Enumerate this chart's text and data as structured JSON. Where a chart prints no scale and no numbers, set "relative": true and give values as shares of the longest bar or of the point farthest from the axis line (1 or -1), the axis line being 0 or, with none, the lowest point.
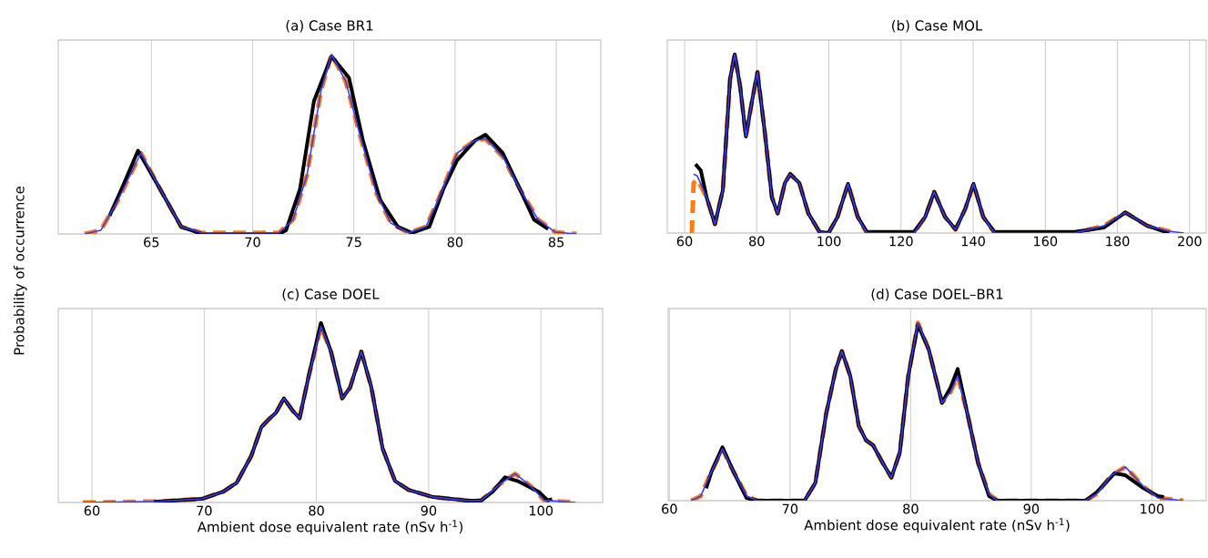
{
  "chart_data": [
    {
      "type": "line",
      "relative": true,
      "title": "(a) Case BR1",
      "ylabel": "Probability of occurrence",
      "xlim": [
        60.4,
        87.2
      ],
      "xticks": [
        65,
        70,
        75,
        80,
        85
      ],
      "grid": "x",
      "series": [
        {
          "color": "#3b3bff",
          "line_style": "solid",
          "x": [
            61.7,
            62.5,
            63.36,
            64.48,
            65.43,
            66.47,
            67.5,
            71.3,
            72.0,
            72.69,
            73.38,
            73.9,
            74.6,
            75.28,
            76.1,
            76.83,
            77.7,
            78.56,
            79.25,
            80.1,
            80.98,
            81.5,
            82.36,
            83.2,
            84.1,
            84.95,
            86.0
          ],
          "values": [
            0,
            0.02,
            0.19,
            0.45,
            0.25,
            0.04,
            0.006,
            0.006,
            0.08,
            0.33,
            0.8,
            1.0,
            0.85,
            0.56,
            0.23,
            0.06,
            0.006,
            0.04,
            0.21,
            0.45,
            0.52,
            0.53,
            0.43,
            0.25,
            0.08,
            0.01,
            0
          ]
        },
        {
          "color": "#ff7f0e",
          "line_style": "dashed",
          "x": [
            61.7,
            62.5,
            63.36,
            64.48,
            65.43,
            66.47,
            67.5,
            71.3,
            72.0,
            72.69,
            73.38,
            73.9,
            74.6,
            75.28,
            76.1,
            76.83,
            77.7,
            78.56,
            79.25,
            80.1,
            80.98,
            81.5,
            82.36,
            83.2,
            84.1,
            84.95,
            86.0
          ],
          "values": [
            0,
            0.02,
            0.19,
            0.45,
            0.25,
            0.04,
            0.006,
            0.006,
            0.08,
            0.33,
            0.8,
            1.0,
            0.85,
            0.56,
            0.23,
            0.06,
            0.006,
            0.04,
            0.21,
            0.45,
            0.52,
            0.53,
            0.43,
            0.25,
            0.08,
            0.01,
            0
          ]
        },
        {
          "color": "#000000",
          "line_style": "solid",
          "x": [
            62.93,
            63.53,
            64.34,
            65.43,
            66.47,
            67.5,
            71.3,
            71.65,
            72.34,
            73.03,
            73.9,
            74.76,
            75.45,
            76.3,
            77.17,
            77.87,
            78.73,
            79.42,
            80.1,
            80.98,
            81.5,
            82.36,
            83.2,
            83.9,
            84.6
          ],
          "values": [
            0.1,
            0.25,
            0.464,
            0.25,
            0.04,
            0,
            0,
            0.02,
            0.25,
            0.74,
            0.99,
            0.87,
            0.52,
            0.19,
            0.04,
            0.006,
            0.04,
            0.25,
            0.41,
            0.52,
            0.553,
            0.45,
            0.25,
            0.08,
            0.027
          ]
        }
      ]
    },
    {
      "type": "line",
      "relative": true,
      "title": "(b) Case MOL",
      "xlim": [
        55.2,
        204.6
      ],
      "xticks": [
        60,
        80,
        100,
        120,
        140,
        160,
        180,
        200
      ],
      "grid": "x",
      "series": [
        {
          "color": "#3b3bff",
          "line_style": "solid",
          "x": [
            62.5,
            63.5,
            66.1,
            68.4,
            70.6,
            72.6,
            73.9,
            75.4,
            77.0,
            78.7,
            80.2,
            82.2,
            84.2,
            85.8,
            87.8,
            89.3,
            91.8,
            94.3,
            97.4,
            99.9,
            102.4,
            105.3,
            108.0,
            110.5,
            123.6,
            126.7,
            129.2,
            132.2,
            135.1,
            137.8,
            140.1,
            142.8,
            145.9,
            168.1,
            176.2,
            182.2,
            188.3,
            194.3,
            198.4
          ],
          "values": [
            0.33,
            0.32,
            0.2,
            0.05,
            0.24,
            0.86,
            1.0,
            0.82,
            0.54,
            0.74,
            0.9,
            0.57,
            0.2,
            0.11,
            0.28,
            0.33,
            0.28,
            0.11,
            0.006,
            0,
            0.09,
            0.275,
            0.09,
            0,
            0,
            0.09,
            0.23,
            0.09,
            0.02,
            0.135,
            0.275,
            0.09,
            0,
            0,
            0.04,
            0.115,
            0.04,
            0.01,
            0
          ]
        },
        {
          "color": "#ff7f0e",
          "line_style": "dashed",
          "x": [
            62.0,
            62.5,
            63.5,
            66.1,
            68.4,
            70.6,
            72.6,
            73.9,
            75.4,
            77.0,
            78.7,
            80.2,
            82.2,
            84.2,
            85.8,
            87.8,
            89.3,
            91.8,
            94.3,
            97.4,
            99.9,
            102.4,
            105.3,
            108.0,
            110.5,
            123.6,
            126.7,
            129.2,
            132.2,
            135.1,
            137.8,
            140.1,
            142.8,
            145.9,
            168.1,
            176.2,
            182.2,
            188.3,
            194.3,
            196.4
          ],
          "values": [
            0,
            0.28,
            0.3,
            0.2,
            0.05,
            0.24,
            0.86,
            1.0,
            0.82,
            0.54,
            0.74,
            0.9,
            0.57,
            0.2,
            0.11,
            0.28,
            0.33,
            0.28,
            0.11,
            0.006,
            0,
            0.09,
            0.275,
            0.09,
            0,
            0,
            0.09,
            0.23,
            0.09,
            0.02,
            0.135,
            0.275,
            0.09,
            0,
            0,
            0.04,
            0.115,
            0.04,
            0.01,
            0
          ]
        },
        {
          "color": "#000000",
          "line_style": "solid",
          "x": [
            63.0,
            64.5,
            66.1,
            68.4,
            70.6,
            72.6,
            73.9,
            75.4,
            77.0,
            78.7,
            80.2,
            82.2,
            84.2,
            85.8,
            87.8,
            89.3,
            91.8,
            94.3,
            97.4,
            99.9,
            102.4,
            105.3,
            108.0,
            110.5,
            123.6,
            126.7,
            129.2,
            132.2,
            135.1,
            137.8,
            140.1,
            142.8,
            145.9,
            168.1,
            176.2,
            182.2,
            188.3,
            194.3
          ],
          "values": [
            0.385,
            0.35,
            0.2,
            0.05,
            0.24,
            0.86,
            1.0,
            0.82,
            0.54,
            0.74,
            0.9,
            0.57,
            0.2,
            0.11,
            0.28,
            0.33,
            0.28,
            0.11,
            0.006,
            0,
            0.09,
            0.275,
            0.09,
            0.006,
            0.006,
            0.09,
            0.23,
            0.09,
            0.02,
            0.135,
            0.275,
            0.09,
            0.006,
            0.006,
            0.03,
            0.115,
            0.04,
            0
          ]
        }
      ]
    },
    {
      "type": "line",
      "relative": true,
      "title": "(c) Case DOEL",
      "xlabel": "Ambient dose equivalent rate (nSv h$^{-1}$)",
      "xlim": [
        57.0,
        105.5
      ],
      "xticks": [
        60,
        70,
        80,
        90,
        100
      ],
      "grid": "x",
      "series": [
        {
          "color": "#3b3bff",
          "line_style": "solid",
          "x": [
            59.2,
            66.1,
            69.8,
            71.7,
            72.9,
            74.2,
            75.1,
            75.7,
            76.4,
            77.1,
            77.9,
            78.5,
            79.3,
            80.4,
            81.3,
            82.3,
            83.0,
            84.0,
            84.9,
            85.9,
            87.0,
            88.2,
            90.4,
            93.5,
            94.7,
            96.3,
            97.7,
            99.1,
            100.3,
            103.1
          ],
          "values": [
            0,
            0.006,
            0.02,
            0.06,
            0.11,
            0.26,
            0.42,
            0.46,
            0.5,
            0.58,
            0.51,
            0.47,
            0.7,
            0.98,
            0.84,
            0.58,
            0.64,
            0.84,
            0.64,
            0.3,
            0.12,
            0.07,
            0.03,
            0.01,
            0.012,
            0.1,
            0.16,
            0.09,
            0.012,
            0
          ]
        },
        {
          "color": "#ff7f0e",
          "line_style": "dashed",
          "x": [
            59.2,
            66.1,
            69.8,
            71.7,
            72.9,
            74.2,
            75.1,
            75.7,
            76.4,
            77.1,
            77.9,
            78.5,
            79.3,
            80.4,
            81.3,
            82.3,
            83.0,
            84.0,
            84.9,
            85.9,
            87.0,
            88.2,
            90.4,
            93.5,
            94.7,
            96.3,
            97.7,
            99.1,
            100.3,
            103.1
          ],
          "values": [
            0,
            0.006,
            0.02,
            0.06,
            0.11,
            0.26,
            0.42,
            0.46,
            0.5,
            0.58,
            0.51,
            0.47,
            0.7,
            0.98,
            0.84,
            0.58,
            0.64,
            0.84,
            0.64,
            0.3,
            0.12,
            0.07,
            0.03,
            0.01,
            0.012,
            0.1,
            0.16,
            0.09,
            0.012,
            0
          ]
        },
        {
          "color": "#000000",
          "line_style": "solid",
          "x": [
            65.5,
            69.8,
            71.7,
            72.9,
            74.2,
            75.1,
            75.7,
            76.4,
            77.1,
            77.9,
            78.5,
            79.3,
            80.4,
            81.3,
            82.3,
            83.0,
            84.0,
            84.9,
            85.9,
            87.0,
            88.2,
            90.4,
            93.5,
            94.7,
            95.7,
            96.8,
            97.9,
            99.8,
            100.6,
            101.0
          ],
          "values": [
            0.004,
            0.02,
            0.06,
            0.11,
            0.26,
            0.42,
            0.46,
            0.5,
            0.58,
            0.51,
            0.47,
            0.7,
            1.0,
            0.84,
            0.58,
            0.64,
            0.84,
            0.64,
            0.3,
            0.12,
            0.07,
            0.03,
            0.01,
            0.012,
            0.06,
            0.14,
            0.12,
            0.06,
            0.012,
            0.018
          ]
        }
      ]
    },
    {
      "type": "line",
      "relative": true,
      "title": "(d) Case DOEL–BR1",
      "xlabel": "Ambient dose equivalent rate (nSv h$^{-1}$)",
      "xlim": [
        59.9,
        104.5
      ],
      "xticks": [
        60,
        70,
        80,
        90,
        100
      ],
      "grid": "x",
      "series": [
        {
          "color": "#3b3bff",
          "line_style": "solid",
          "x": [
            61.8,
            62.6,
            63.5,
            64.4,
            65.3,
            66.4,
            67.3,
            71.2,
            72.1,
            73.0,
            73.8,
            74.3,
            75.0,
            75.7,
            76.3,
            76.9,
            77.7,
            78.4,
            79.1,
            79.8,
            80.6,
            81.5,
            82.6,
            83.3,
            83.9,
            84.7,
            85.6,
            86.5,
            87.2,
            94.5,
            95.4,
            96.6,
            97.8,
            99.3,
            100.5,
            102.6
          ],
          "values": [
            0,
            0.026,
            0.165,
            0.29,
            0.165,
            0.026,
            0,
            0,
            0.1,
            0.49,
            0.74,
            0.84,
            0.7,
            0.42,
            0.34,
            0.31,
            0.21,
            0.13,
            0.27,
            0.7,
            1.0,
            0.85,
            0.55,
            0.61,
            0.7,
            0.49,
            0.21,
            0.036,
            0,
            0,
            0.036,
            0.14,
            0.19,
            0.08,
            0.015,
            0
          ]
        },
        {
          "color": "#ff7f0e",
          "line_style": "dashed",
          "x": [
            61.8,
            62.6,
            63.5,
            64.4,
            65.3,
            66.4,
            67.3,
            71.2,
            72.1,
            73.0,
            73.8,
            74.3,
            75.0,
            75.7,
            76.3,
            76.9,
            77.7,
            78.4,
            79.1,
            79.8,
            80.6,
            81.5,
            82.6,
            83.3,
            83.9,
            84.7,
            85.6,
            86.5,
            87.2,
            94.5,
            95.4,
            96.6,
            97.8,
            99.3,
            100.5,
            102.6
          ],
          "values": [
            0,
            0.026,
            0.165,
            0.29,
            0.165,
            0.026,
            0,
            0,
            0.1,
            0.49,
            0.74,
            0.84,
            0.7,
            0.42,
            0.34,
            0.31,
            0.21,
            0.13,
            0.27,
            0.7,
            1.0,
            0.85,
            0.55,
            0.61,
            0.7,
            0.49,
            0.21,
            0.036,
            0,
            0,
            0.036,
            0.14,
            0.19,
            0.08,
            0.015,
            0
          ]
        },
        {
          "color": "#000000",
          "line_style": "solid",
          "x": [
            63.05,
            63.5,
            64.4,
            65.3,
            66.4,
            67.3,
            71.2,
            72.1,
            73.0,
            73.8,
            74.3,
            75.0,
            75.7,
            76.3,
            76.9,
            77.7,
            78.4,
            79.1,
            79.8,
            80.6,
            81.5,
            82.6,
            83.3,
            83.9,
            84.7,
            85.6,
            86.5,
            87.2,
            94.5,
            95.4,
            96.9,
            97.8,
            99.3,
            100.5,
            101.0
          ],
          "values": [
            0.07,
            0.165,
            0.3,
            0.165,
            0.015,
            0,
            0,
            0.1,
            0.49,
            0.74,
            0.84,
            0.7,
            0.42,
            0.34,
            0.31,
            0.21,
            0.13,
            0.27,
            0.7,
            0.99,
            0.85,
            0.55,
            0.635,
            0.74,
            0.49,
            0.21,
            0.026,
            0,
            0,
            0.046,
            0.154,
            0.143,
            0.07,
            0.026,
            0.02
          ]
        }
      ]
    }
  ]
}
